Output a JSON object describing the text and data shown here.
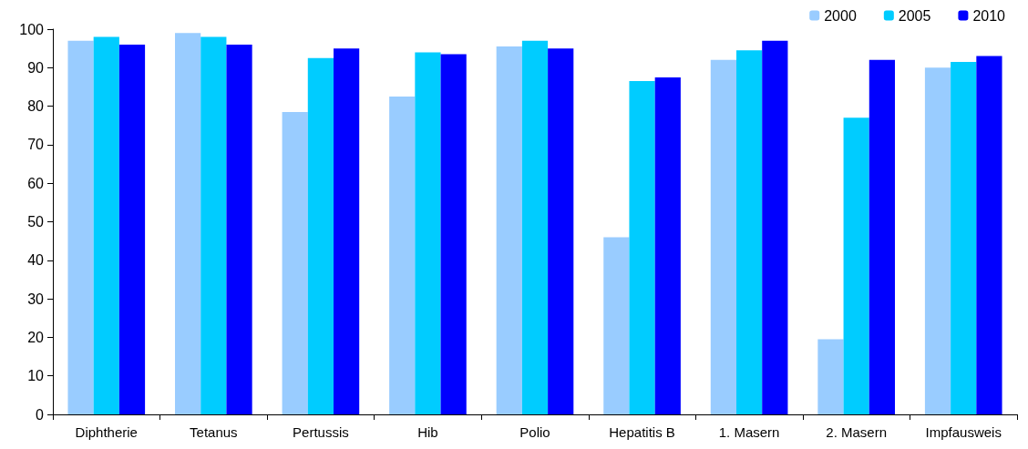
{
  "chart_data": {
    "type": "bar",
    "categories": [
      "Diphtherie",
      "Tetanus",
      "Pertussis",
      "Hib",
      "Polio",
      "Hepatitis B",
      "1. Masern",
      "2. Masern",
      "Impfausweis"
    ],
    "series": [
      {
        "name": "2000",
        "color": "#99ccff",
        "values": [
          97,
          99,
          78.5,
          82.5,
          95.5,
          46,
          92,
          19.5,
          90
        ]
      },
      {
        "name": "2005",
        "color": "#00ccff",
        "values": [
          98,
          98,
          92.5,
          94,
          97,
          86.5,
          94.5,
          77,
          91.5
        ]
      },
      {
        "name": "2010",
        "color": "#0000ff",
        "values": [
          96,
          96,
          95,
          93.5,
          95,
          87.5,
          97,
          92,
          93
        ]
      }
    ],
    "ylim": [
      0,
      100
    ],
    "yticks": [
      0,
      10,
      20,
      30,
      40,
      50,
      60,
      70,
      80,
      90,
      100
    ],
    "grid": false,
    "legend": "top right"
  }
}
